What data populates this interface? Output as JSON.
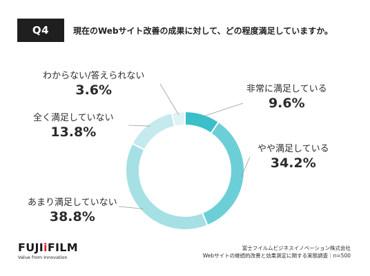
{
  "header": {
    "badge": "Q4",
    "question": "現在のWebサイト改善の成果に対して、どの程度満足していますか。"
  },
  "chart_data": {
    "type": "pie",
    "donut": true,
    "title": "",
    "categories": [
      "非常に満足している",
      "やや満足している",
      "あまり満足していない",
      "全く満足していない",
      "わからない/答えられない"
    ],
    "values": [
      9.6,
      34.2,
      38.8,
      13.8,
      3.6
    ],
    "value_labels": [
      "9.6%",
      "34.2%",
      "38.8%",
      "13.8%",
      "3.6%"
    ],
    "colors": [
      "#3bbfc8",
      "#6ccfd7",
      "#a5e0e5",
      "#c4eaee",
      "#dff3f5"
    ],
    "start_angle": "top",
    "direction": "clockwise"
  },
  "footer": {
    "logo_pre": "FUJI",
    "logo_accent": "i",
    "logo_post": "FILM",
    "tagline": "Value from Innovation",
    "source_line1": "富士フイルムビジネスイノベーション株式会社",
    "source_line2": "Webサイトの継続的改善と効果測定に関する実態調査｜n=500"
  }
}
